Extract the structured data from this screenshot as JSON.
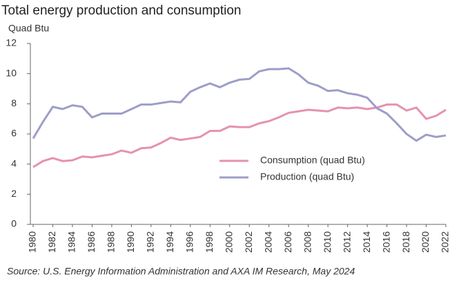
{
  "chart_data": {
    "type": "line",
    "title": "Total energy production and consumption",
    "y_label": "Quad Btu",
    "source": "Source: U.S. Energy Information Administration and AXA IM Research,  May 2024",
    "x": [
      1980,
      1981,
      1982,
      1983,
      1984,
      1985,
      1986,
      1987,
      1988,
      1989,
      1990,
      1991,
      1992,
      1993,
      1994,
      1995,
      1996,
      1997,
      1998,
      1999,
      2000,
      2001,
      2002,
      2003,
      2004,
      2005,
      2006,
      2007,
      2008,
      2009,
      2010,
      2011,
      2012,
      2013,
      2014,
      2015,
      2016,
      2017,
      2018,
      2019,
      2020,
      2021,
      2022
    ],
    "series": [
      {
        "name": "Consumption (quad Btu)",
        "color": "#e591b2",
        "values": [
          3.8,
          4.2,
          4.4,
          4.2,
          4.25,
          4.5,
          4.45,
          4.55,
          4.65,
          4.9,
          4.75,
          5.05,
          5.1,
          5.4,
          5.75,
          5.6,
          5.7,
          5.8,
          6.2,
          6.2,
          6.5,
          6.45,
          6.45,
          6.7,
          6.85,
          7.1,
          7.4,
          7.5,
          7.6,
          7.55,
          7.5,
          7.75,
          7.7,
          7.75,
          7.65,
          7.75,
          7.95,
          7.95,
          7.55,
          7.75,
          7.0,
          7.2,
          7.6
        ]
      },
      {
        "name": "Production (quad Btu)",
        "color": "#9d9dc9",
        "values": [
          5.7,
          6.8,
          7.8,
          7.65,
          7.9,
          7.8,
          7.1,
          7.35,
          7.35,
          7.35,
          7.65,
          7.95,
          7.95,
          8.05,
          8.15,
          8.1,
          8.8,
          9.1,
          9.35,
          9.1,
          9.4,
          9.6,
          9.65,
          10.15,
          10.3,
          10.3,
          10.35,
          9.95,
          9.4,
          9.2,
          8.85,
          8.9,
          8.7,
          8.6,
          8.4,
          7.7,
          7.35,
          6.7,
          6.0,
          5.55,
          5.95,
          5.8,
          5.9
        ]
      }
    ],
    "xlim": [
      1980,
      2022
    ],
    "xticks": [
      1980,
      1982,
      1984,
      1986,
      1988,
      1990,
      1992,
      1994,
      1996,
      1998,
      2000,
      2002,
      2004,
      2006,
      2008,
      2010,
      2012,
      2014,
      2016,
      2018,
      2020,
      2022
    ],
    "ylim": [
      0,
      12
    ],
    "yticks": [
      0,
      2,
      4,
      6,
      8,
      10,
      12
    ],
    "grid": false,
    "legend": "center-right"
  }
}
